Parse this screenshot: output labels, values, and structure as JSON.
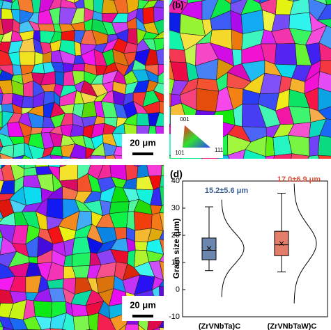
{
  "panels": {
    "b_label": "(b)",
    "ipf_legend": {
      "top": "001",
      "left": "101",
      "right": "111"
    },
    "scale_bars": [
      "20 μm",
      "20 μm"
    ]
  },
  "chart_data": {
    "type": "box",
    "label": "(d)",
    "ylabel": "Grain size (μm)",
    "categories": [
      "(ZrVNbTa)C",
      "(ZrVNbTaW)C"
    ],
    "ylim": [
      -10,
      40
    ],
    "yticks": [
      -10,
      0,
      10,
      20,
      30,
      40
    ],
    "boxes": [
      {
        "whislo": 7,
        "q1": 11,
        "med": 14.5,
        "q3": 19,
        "whishi": 30.5,
        "mean": 15.2,
        "sd": 5.6,
        "color": "#3b5f94",
        "annotation": "15.2±5.6 μm"
      },
      {
        "whislo": 6.5,
        "q1": 12.5,
        "med": 16.5,
        "q3": 21.5,
        "whishi": 35.5,
        "mean": 17.0,
        "sd": 6.9,
        "color": "#d9533a",
        "annotation": "17.0±6.9 μm"
      }
    ]
  }
}
